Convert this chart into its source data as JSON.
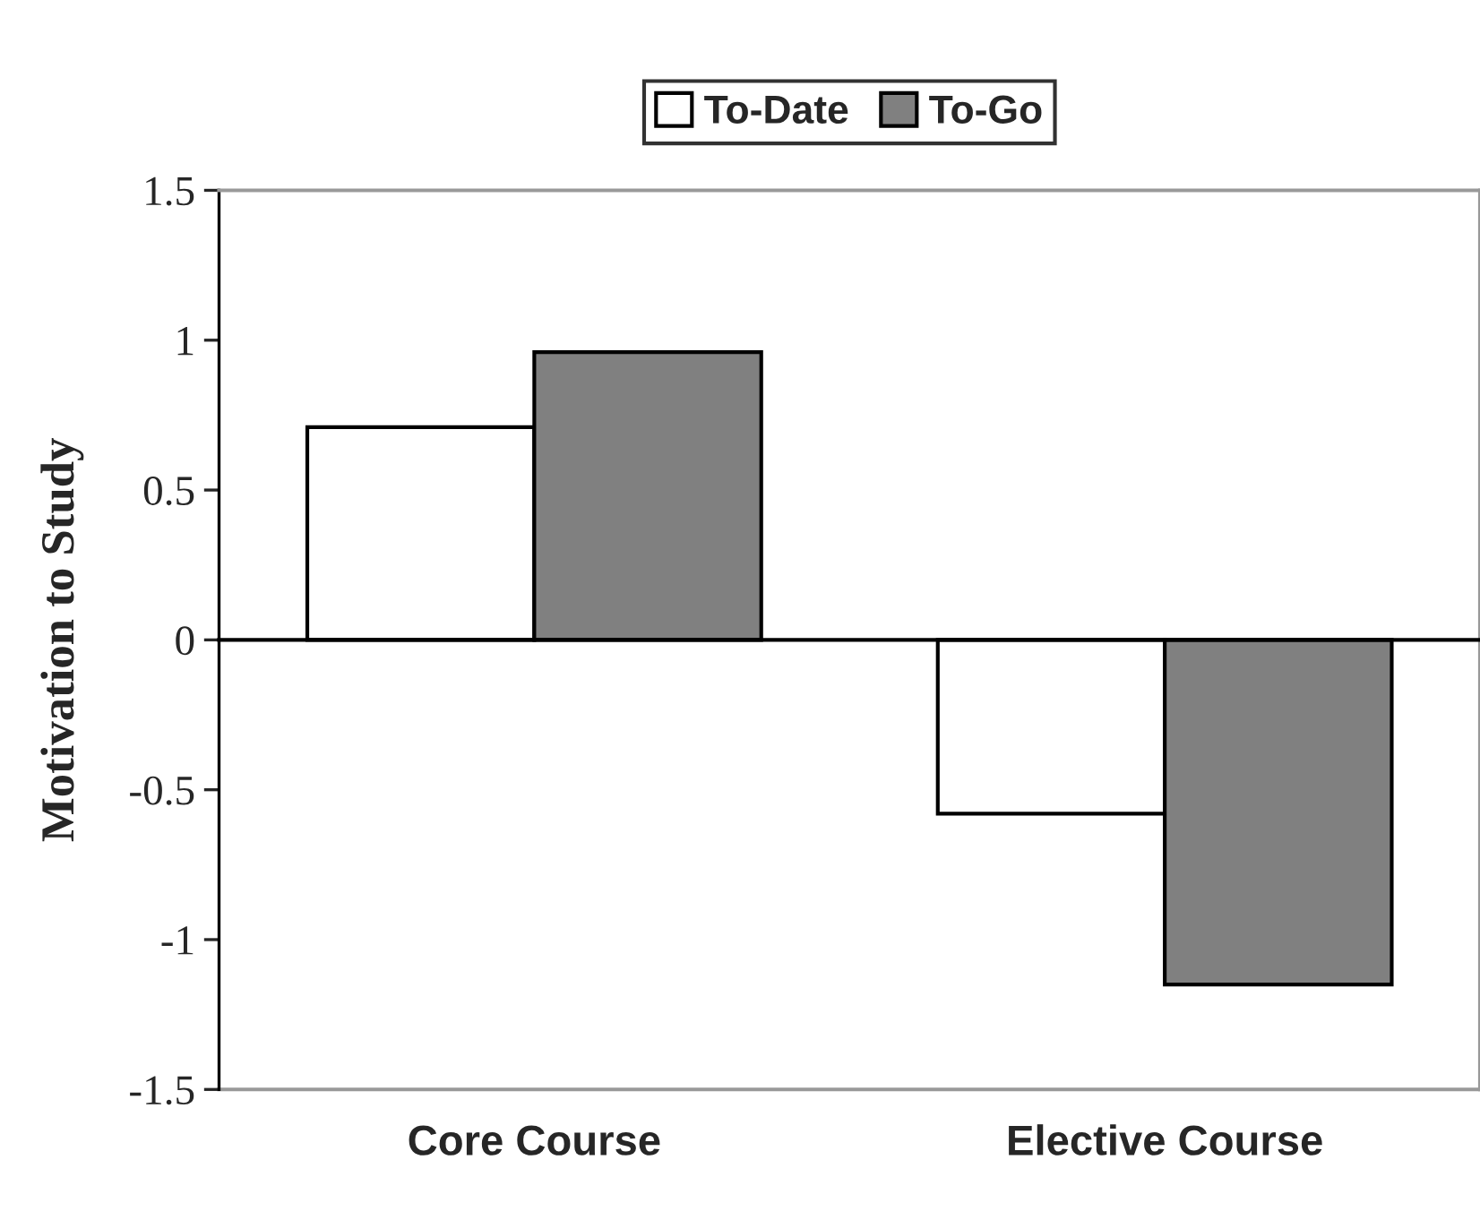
{
  "chart_data": {
    "type": "bar",
    "ylabel": "Motivation to Study",
    "categories": [
      "Core Course",
      "Elective Course"
    ],
    "series": [
      {
        "name": "To-Date",
        "color": "#ffffff",
        "values": [
          0.71,
          -0.58
        ]
      },
      {
        "name": "To-Go",
        "color": "#808080",
        "values": [
          0.96,
          -1.15
        ]
      }
    ],
    "ylim": [
      -1.5,
      1.5
    ],
    "yticks": [
      1.5,
      1,
      0.5,
      0,
      -0.5,
      -1,
      -1.5
    ],
    "legend": "top"
  }
}
